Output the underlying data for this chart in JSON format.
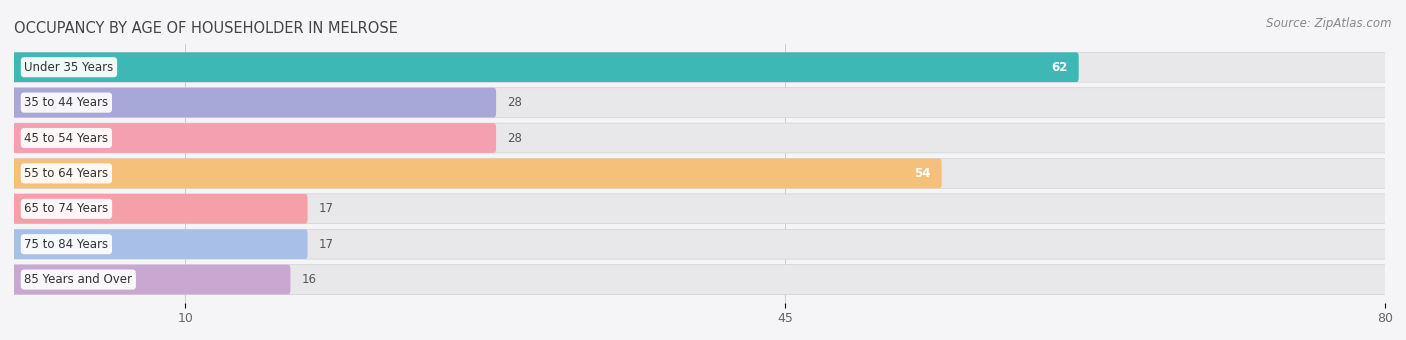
{
  "title": "OCCUPANCY BY AGE OF HOUSEHOLDER IN MELROSE",
  "source": "Source: ZipAtlas.com",
  "categories": [
    "Under 35 Years",
    "35 to 44 Years",
    "45 to 54 Years",
    "55 to 64 Years",
    "65 to 74 Years",
    "75 to 84 Years",
    "85 Years and Over"
  ],
  "values": [
    62,
    28,
    28,
    54,
    17,
    17,
    16
  ],
  "bar_colors": [
    "#3db8b4",
    "#a8a8d8",
    "#f5a0b0",
    "#f5c07a",
    "#f5a0a8",
    "#a8c0e8",
    "#c8a8d0"
  ],
  "value_inside": [
    true,
    false,
    false,
    true,
    false,
    false,
    false
  ],
  "xlim": [
    0,
    80
  ],
  "data_max": 80,
  "xticks": [
    10,
    45,
    80
  ],
  "bar_height": 0.58,
  "track_color": "#e8e8ea",
  "background_color": "#f5f5f7",
  "title_fontsize": 10.5,
  "source_fontsize": 8.5,
  "label_fontsize": 8.5,
  "tick_fontsize": 9,
  "value_fontsize": 8.5
}
